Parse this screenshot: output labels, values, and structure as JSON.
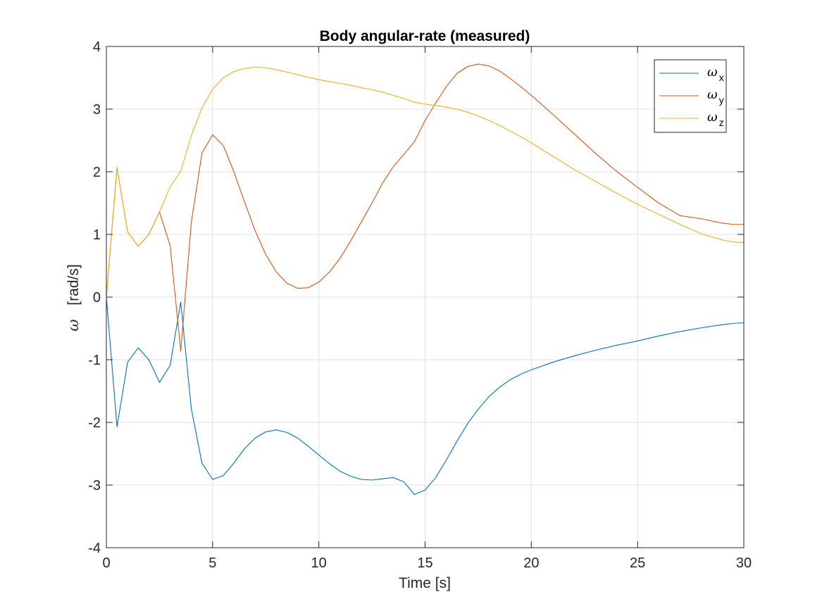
{
  "chart_data": {
    "type": "line",
    "title": "Body angular-rate (measured)",
    "xlabel": "Time [s]",
    "ylabel_symbol": "ω",
    "ylabel_unit": "[rad/s]",
    "xlim": [
      0,
      30
    ],
    "ylim": [
      -4,
      4
    ],
    "xticks": [
      0,
      5,
      10,
      15,
      20,
      25,
      30
    ],
    "yticks": [
      -4,
      -3,
      -2,
      -1,
      0,
      1,
      2,
      3,
      4
    ],
    "grid": true,
    "legend_position": "top-right",
    "series": [
      {
        "name": "ω_x",
        "color": "#0072BD",
        "x": [
          0,
          0.5,
          1,
          1.5,
          2,
          2.5,
          3,
          3.5,
          4,
          4.5,
          5,
          5.5,
          6,
          6.5,
          7,
          7.5,
          8,
          8.5,
          9,
          9.5,
          10,
          10.5,
          11,
          11.5,
          12,
          12.5,
          13,
          13.5,
          14,
          14.5,
          15,
          15.5,
          16,
          16.5,
          17,
          17.5,
          18,
          18.5,
          19,
          19.5,
          20,
          21,
          22,
          23,
          24,
          25,
          26,
          27,
          28,
          29,
          29.5,
          30
        ],
        "values": [
          0,
          -2.07,
          -1.04,
          -0.81,
          -1.0,
          -1.36,
          -1.09,
          -0.08,
          -1.79,
          -2.65,
          -2.91,
          -2.85,
          -2.65,
          -2.42,
          -2.25,
          -2.15,
          -2.12,
          -2.16,
          -2.25,
          -2.38,
          -2.52,
          -2.66,
          -2.78,
          -2.86,
          -2.91,
          -2.92,
          -2.9,
          -2.88,
          -2.95,
          -3.15,
          -3.08,
          -2.88,
          -2.6,
          -2.3,
          -2.02,
          -1.79,
          -1.59,
          -1.44,
          -1.32,
          -1.23,
          -1.16,
          -1.04,
          -0.94,
          -0.85,
          -0.77,
          -0.7,
          -0.62,
          -0.55,
          -0.49,
          -0.44,
          -0.42,
          -0.41
        ]
      },
      {
        "name": "ω_y",
        "color": "#D95319",
        "x": [
          0,
          0.5,
          1,
          1.5,
          2,
          2.5,
          3,
          3.5,
          4,
          4.5,
          5,
          5.5,
          6,
          6.5,
          7,
          7.5,
          8,
          8.5,
          9,
          9.5,
          10,
          10.5,
          11,
          11.5,
          12,
          12.5,
          13,
          13.5,
          14,
          14.5,
          15,
          15.5,
          16,
          16.5,
          17,
          17.5,
          18,
          18.5,
          19,
          19.5,
          20,
          21,
          22,
          23,
          24,
          25,
          26,
          27,
          28,
          29,
          29.5,
          30
        ],
        "values": [
          0,
          2.07,
          1.04,
          0.81,
          1.0,
          1.36,
          0.82,
          -0.86,
          1.2,
          2.3,
          2.59,
          2.42,
          2.0,
          1.52,
          1.06,
          0.68,
          0.4,
          0.22,
          0.14,
          0.15,
          0.24,
          0.4,
          0.62,
          0.9,
          1.2,
          1.5,
          1.82,
          2.08,
          2.28,
          2.48,
          2.82,
          3.1,
          3.36,
          3.57,
          3.68,
          3.72,
          3.69,
          3.61,
          3.49,
          3.36,
          3.22,
          2.92,
          2.61,
          2.3,
          2.01,
          1.75,
          1.5,
          1.3,
          1.25,
          1.18,
          1.16,
          1.16
        ]
      },
      {
        "name": "ω_z",
        "color": "#EDB120",
        "x": [
          0,
          0.5,
          1,
          1.5,
          2,
          2.5,
          3,
          3.5,
          4,
          4.5,
          5,
          5.5,
          6,
          6.5,
          7,
          7.5,
          8,
          8.5,
          9,
          9.5,
          10,
          10.5,
          11,
          11.5,
          12,
          12.5,
          13,
          13.5,
          14,
          14.5,
          15,
          15.5,
          16,
          16.5,
          17,
          17.5,
          18,
          18.5,
          19,
          19.5,
          20,
          21,
          22,
          23,
          24,
          25,
          26,
          27,
          28,
          29,
          29.5,
          30
        ],
        "values": [
          0,
          2.07,
          1.04,
          0.81,
          1.0,
          1.36,
          1.76,
          2.01,
          2.58,
          3.02,
          3.32,
          3.5,
          3.6,
          3.65,
          3.67,
          3.66,
          3.63,
          3.59,
          3.55,
          3.51,
          3.47,
          3.44,
          3.41,
          3.38,
          3.34,
          3.31,
          3.27,
          3.22,
          3.17,
          3.11,
          3.08,
          3.06,
          3.03,
          3.0,
          2.95,
          2.89,
          2.82,
          2.74,
          2.65,
          2.56,
          2.46,
          2.25,
          2.04,
          1.85,
          1.66,
          1.48,
          1.32,
          1.16,
          1.01,
          0.91,
          0.88,
          0.87
        ]
      }
    ]
  }
}
